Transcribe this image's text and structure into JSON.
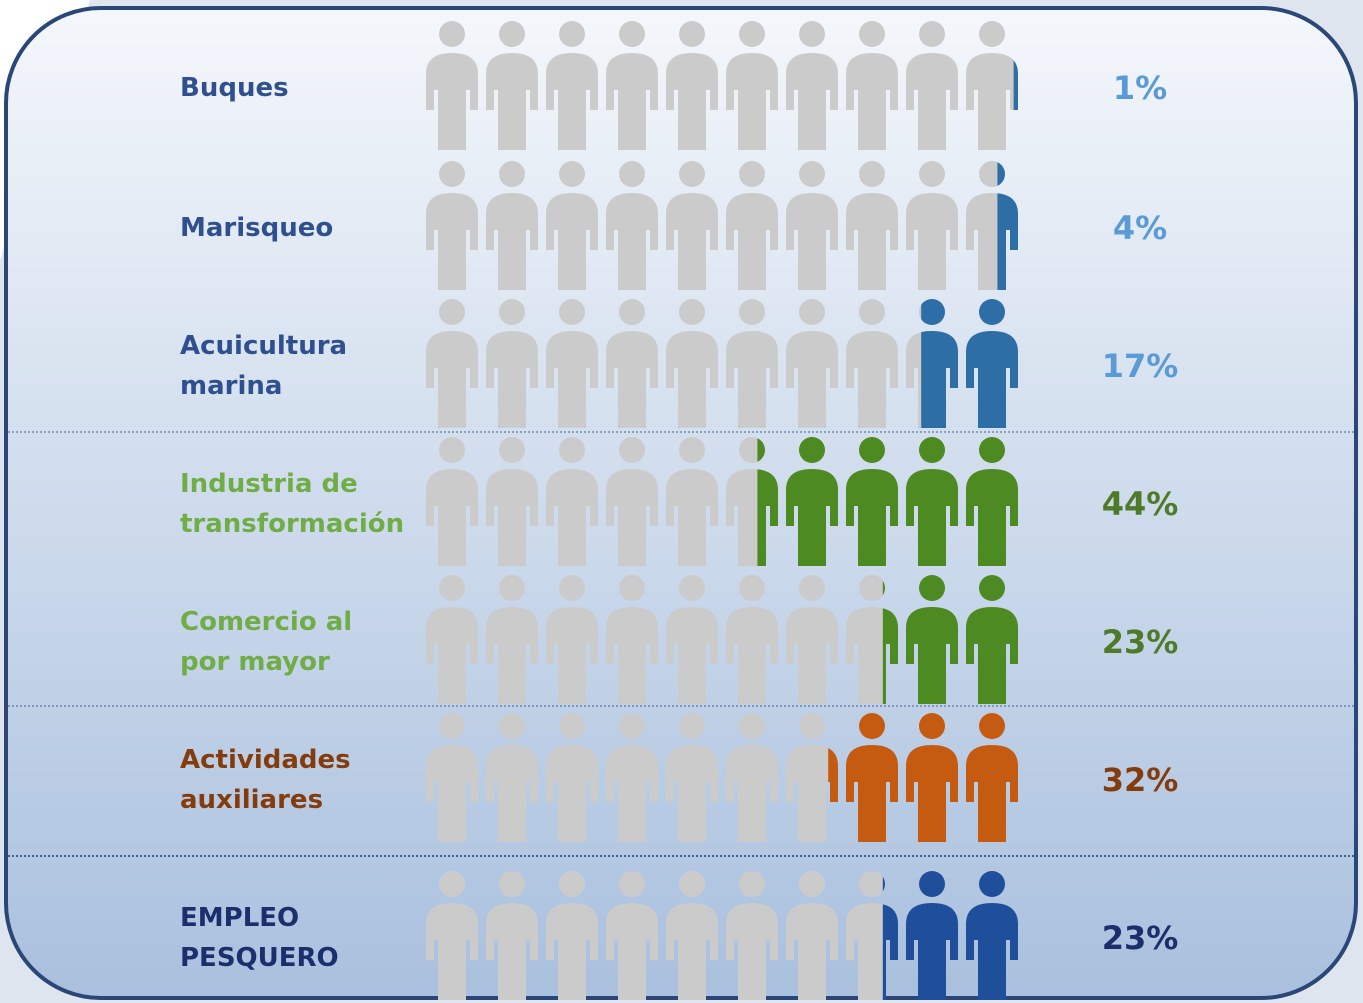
{
  "chart_data": {
    "type": "pictogram",
    "categories": [
      "Buques",
      "Marisqueo",
      "Acuicultura marina",
      "Industria de transformación",
      "Comercio al por mayor",
      "Actividades auxiliares",
      "EMPLEO PESQUERO"
    ],
    "values": [
      1,
      4,
      17,
      44,
      23,
      32,
      23
    ],
    "value_labels": [
      "1%",
      "4%",
      "17%",
      "44%",
      "23%",
      "32%",
      "23%"
    ],
    "colors": [
      "#2e6ea6",
      "#2e6ea6",
      "#2e6ea6",
      "#4e8a22",
      "#4e8a22",
      "#c55a11",
      "#1f4e9a"
    ],
    "label_colors": [
      "#2f4f8f",
      "#2f4f8f",
      "#2f4f8f",
      "#70ad47",
      "#70ad47",
      "#843c0c",
      "#1a2f6b"
    ],
    "value_label_colors": [
      "#5b9bd5",
      "#5b9bd5",
      "#5b9bd5",
      "#4e7a2a",
      "#4e7a2a",
      "#843c0c",
      "#1a2f6b"
    ]
  }
}
